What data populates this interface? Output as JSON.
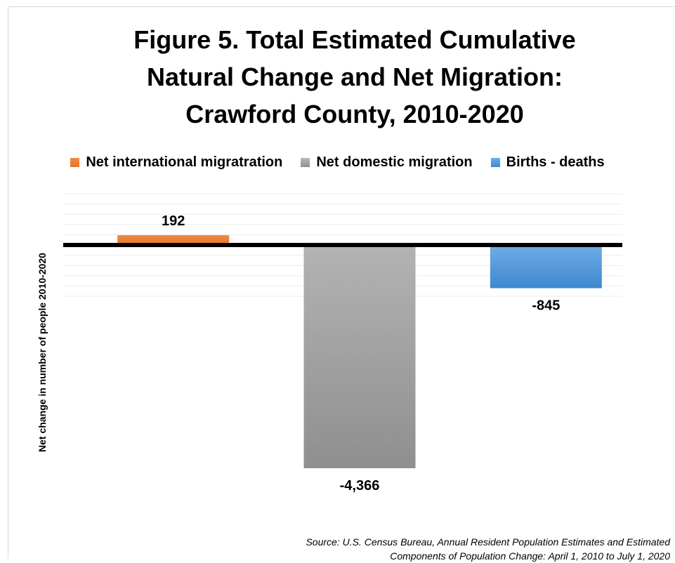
{
  "chart_data": {
    "type": "bar",
    "title": [
      "Figure 5. Total Estimated Cumulative",
      "Natural Change and Net Migration:",
      "Crawford County, 2010-2020"
    ],
    "ylabel": "Net change in number of people 2010-2020",
    "categories": [
      "Net international migratration",
      "Net domestic migration",
      "Births  - deaths"
    ],
    "values": [
      192,
      -4366,
      -845
    ],
    "value_labels": [
      "192",
      "-4,366",
      "-845"
    ],
    "colors": [
      "#ed7d31",
      "#a5a5a5",
      "#5b9bd5"
    ],
    "legend": {
      "position": "top",
      "entries": [
        "Net international migratration",
        "Net domestic migration",
        "Births  - deaths"
      ]
    },
    "ylim": [
      -5000,
      1000
    ],
    "grid": true,
    "source": [
      "Source: U.S. Census Bureau, Annual Resident Population Estimates and Estimated",
      "Components of Population Change: April 1, 2010 to July 1, 2020"
    ]
  }
}
